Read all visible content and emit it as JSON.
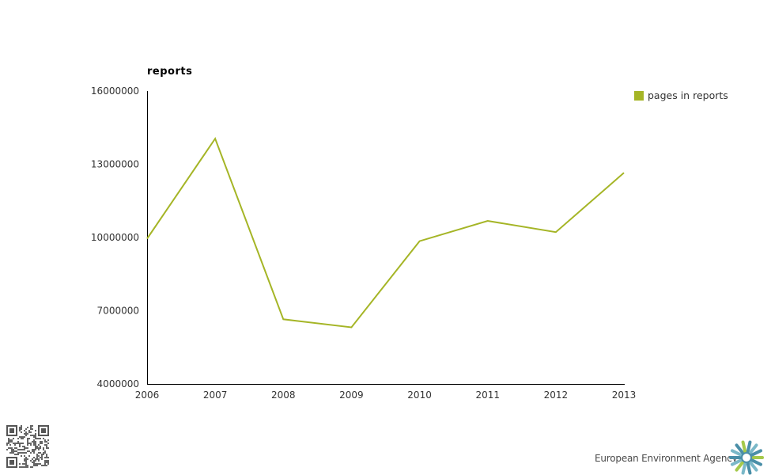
{
  "chart_data": {
    "type": "line",
    "title": "",
    "unit_label": "reports",
    "xlabel": "",
    "ylabel": "",
    "categories": [
      "2006",
      "2007",
      "2008",
      "2009",
      "2010",
      "2011",
      "2012",
      "2013"
    ],
    "series": [
      {
        "name": "pages in reports",
        "color": "#a5b526",
        "values": [
          9950000,
          14050000,
          6650000,
          6320000,
          9850000,
          10680000,
          10220000,
          12650000
        ]
      }
    ],
    "ylim": [
      4000000,
      16000000
    ],
    "y_ticks": [
      "4000000",
      "7000000",
      "10000000",
      "13000000",
      "16000000"
    ],
    "grid": false,
    "legend_position": "top-right"
  },
  "footer": {
    "agency_name": "European Environment Agency",
    "logo_colors": [
      "#7ab8c8",
      "#4a8fa8",
      "#a5c94a"
    ],
    "qr_icon": "qr-code-icon"
  }
}
